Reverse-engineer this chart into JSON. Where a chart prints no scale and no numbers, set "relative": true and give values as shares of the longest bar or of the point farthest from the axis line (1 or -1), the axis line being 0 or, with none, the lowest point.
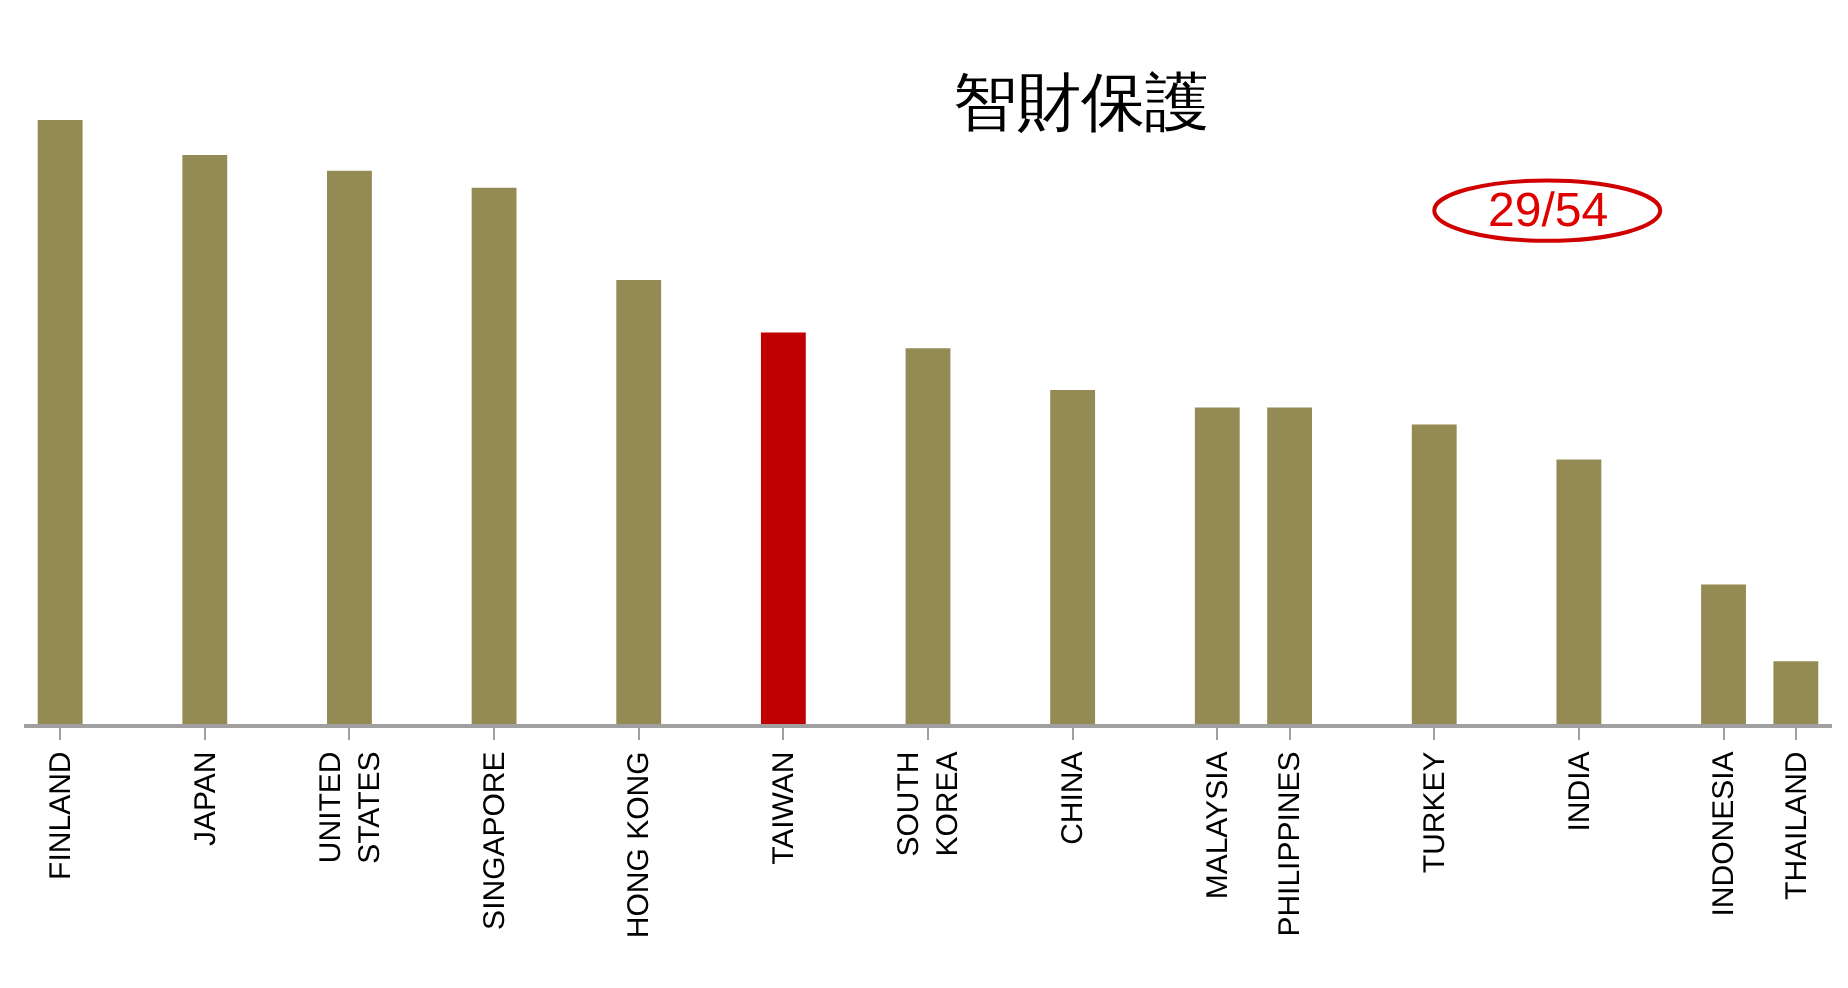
{
  "chart_data": {
    "type": "bar",
    "title": "智財保護",
    "relative": true,
    "legend": false,
    "annotations": [
      "29/54"
    ],
    "categories": [
      "FINLAND",
      null,
      "JAPAN",
      null,
      "UNITED\nSTATES",
      null,
      "SINGAPORE",
      null,
      "HONG KONG",
      null,
      "TAIWAN",
      null,
      "SOUTH\nKOREA",
      null,
      "CHINA",
      null,
      "MALAYSIA",
      "PHILIPPINES",
      null,
      "TURKEY",
      null,
      "INDIA",
      null,
      "INDONESIA",
      "THAILAND"
    ],
    "values": [
      1,
      null,
      0.942,
      null,
      0.916,
      null,
      0.888,
      null,
      0.735,
      null,
      0.648,
      null,
      0.622,
      null,
      0.553,
      null,
      0.524,
      0.524,
      null,
      0.496,
      null,
      0.438,
      null,
      0.231,
      0.104
    ],
    "colors": [
      "#948a54",
      null,
      "#948a54",
      null,
      "#948a54",
      null,
      "#948a54",
      null,
      "#948a54",
      null,
      "#c00000",
      null,
      "#948a54",
      null,
      "#948a54",
      null,
      "#948a54",
      "#948a54",
      null,
      "#948a54",
      null,
      "#948a54",
      null,
      "#948a54",
      "#948a54"
    ]
  }
}
